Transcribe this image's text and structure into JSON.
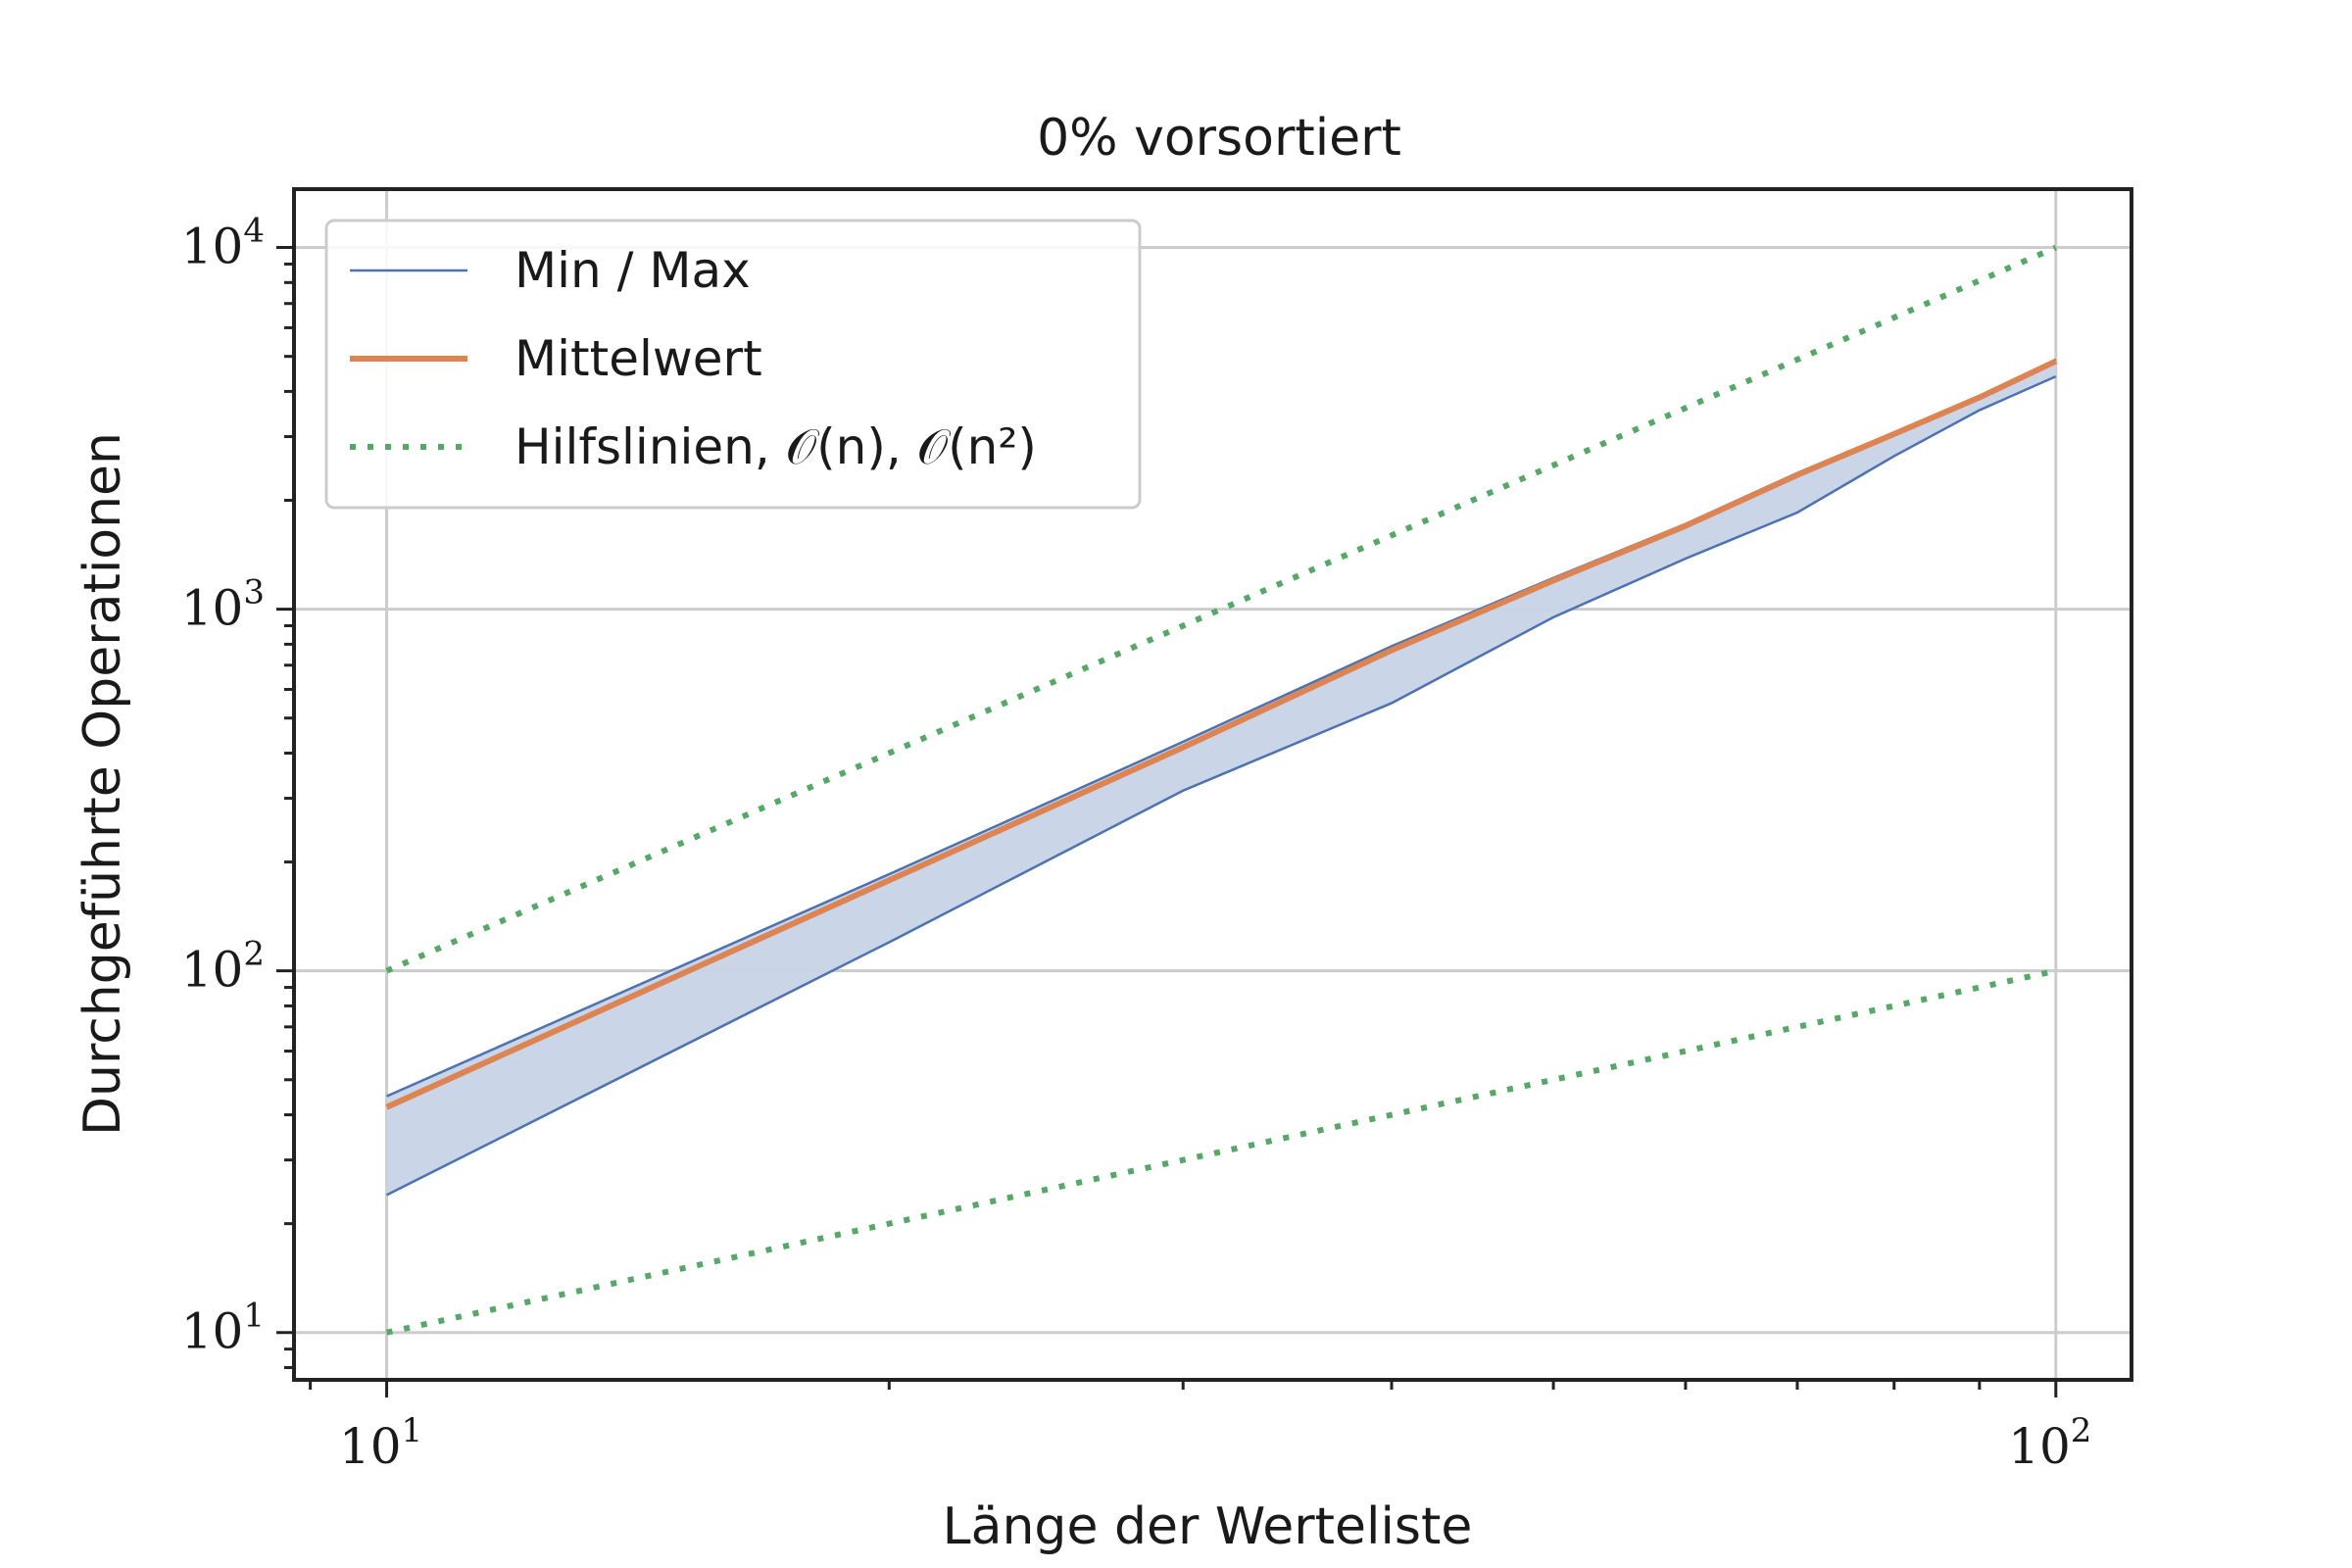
{
  "chart_data": {
    "type": "line",
    "title": "0% vorsortiert",
    "xlabel": "Länge der Werteliste",
    "ylabel": "Durchgeführte Operationen",
    "xscale": "log",
    "yscale": "log",
    "xlim": [
      8.8,
      111
    ],
    "ylim": [
      7.4,
      14500
    ],
    "grid": true,
    "legend_position": "top-left",
    "x_ticks": [
      {
        "value": 10,
        "base": "10",
        "exp": "1"
      },
      {
        "value": 100,
        "base": "10",
        "exp": "2"
      }
    ],
    "y_ticks": [
      {
        "value": 10,
        "base": "10",
        "exp": "1"
      },
      {
        "value": 100,
        "base": "10",
        "exp": "2"
      },
      {
        "value": 1000,
        "base": "10",
        "exp": "3"
      },
      {
        "value": 10000,
        "base": "10",
        "exp": "4"
      }
    ],
    "x": [
      10,
      20,
      30,
      40,
      50,
      60,
      70,
      80,
      90,
      100
    ],
    "series": [
      {
        "name": "Min / Max",
        "role": "band",
        "color": "#4c72b0",
        "fill": "#c7d3e6",
        "min": [
          24,
          120,
          315,
          550,
          950,
          1380,
          1850,
          2650,
          3550,
          4400
        ],
        "max": [
          45,
          185,
          430,
          790,
          1220,
          1720,
          2380,
          3080,
          3880,
          4900
        ]
      },
      {
        "name": "Mittelwert",
        "role": "line",
        "color": "#dd8452",
        "values": [
          42,
          178,
          415,
          770,
          1200,
          1700,
          2350,
          3050,
          3850,
          4850
        ]
      },
      {
        "name": "Hilfslinien, 𝒪(n), 𝒪(n²)",
        "role": "guide",
        "color": "#55a868",
        "lines": [
          {
            "label": "O(n)",
            "x": [
              10,
              100
            ],
            "y": [
              10,
              100
            ]
          },
          {
            "label": "O(n²)",
            "x": [
              10,
              100
            ],
            "y": [
              100,
              10000
            ]
          }
        ]
      }
    ]
  },
  "legend": {
    "items": [
      {
        "label": "Min / Max",
        "style": "thin",
        "color": "#4c72b0"
      },
      {
        "label": "Mittelwert",
        "style": "thick",
        "color": "#dd8452"
      },
      {
        "label": "Hilfslinien, 𝒪(n), 𝒪(n²)",
        "style": "dotted",
        "color": "#55a868"
      }
    ]
  }
}
